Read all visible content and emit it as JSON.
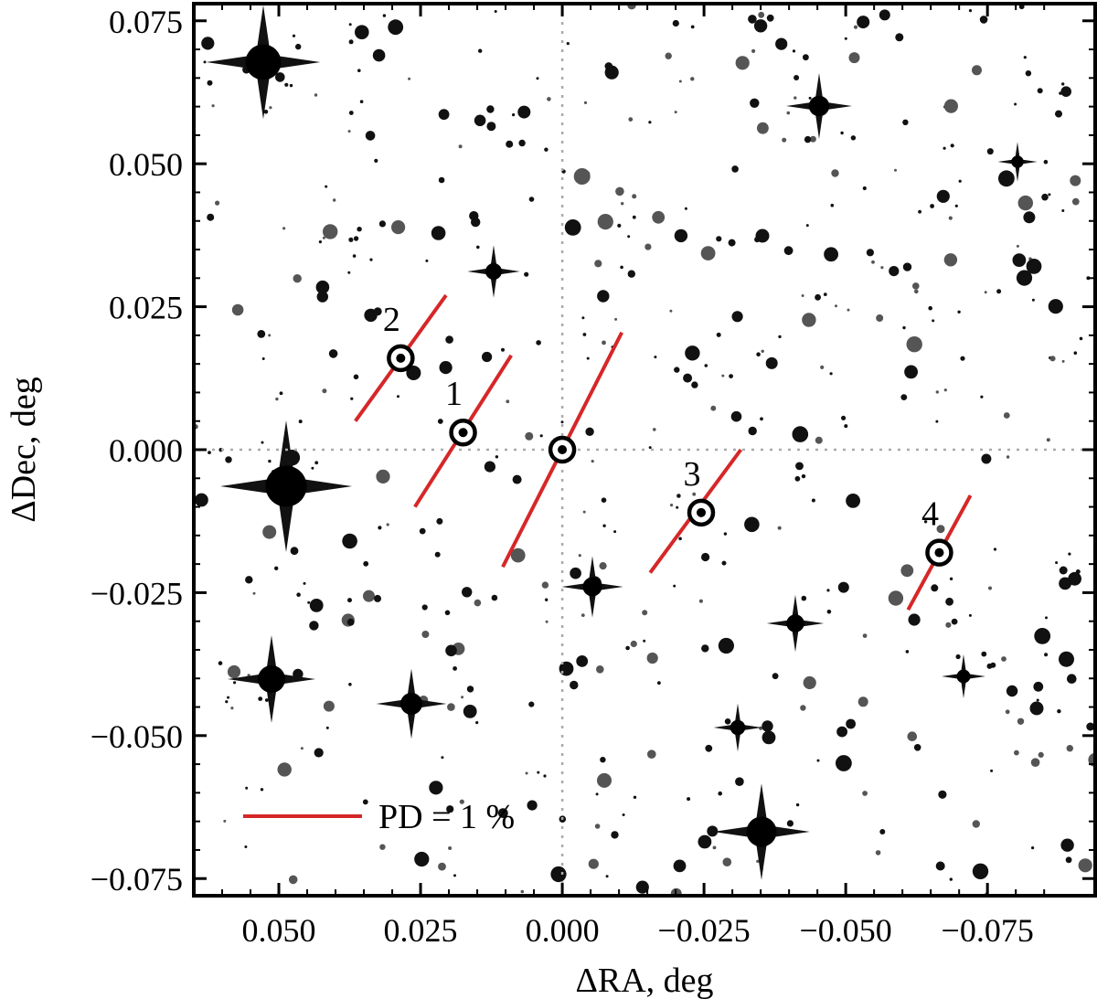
{
  "chart_data": {
    "type": "scatter",
    "xlabel": "ΔRA, deg",
    "ylabel": "ΔDec, deg",
    "xlim": [
      0.065,
      -0.094
    ],
    "ylim": [
      -0.078,
      0.078
    ],
    "x_inverted": true,
    "xticks": [
      {
        "value": 0.05,
        "label": "0.050"
      },
      {
        "value": 0.025,
        "label": "0.025"
      },
      {
        "value": 0.0,
        "label": "0.000"
      },
      {
        "value": -0.025,
        "label": "−0.025"
      },
      {
        "value": -0.05,
        "label": "−0.050"
      },
      {
        "value": -0.075,
        "label": "−0.075"
      }
    ],
    "yticks": [
      {
        "value": 0.075,
        "label": "0.075"
      },
      {
        "value": 0.05,
        "label": "0.050"
      },
      {
        "value": 0.025,
        "label": "0.025"
      },
      {
        "value": 0.0,
        "label": "0.000"
      },
      {
        "value": -0.025,
        "label": "−0.025"
      },
      {
        "value": -0.05,
        "label": "−0.050"
      },
      {
        "value": -0.075,
        "label": "−0.075"
      }
    ],
    "reference_lines": [
      {
        "axis": "x",
        "value": 0.0,
        "style": "dotted"
      },
      {
        "axis": "y",
        "value": 0.0,
        "style": "dotted"
      }
    ],
    "polarization_color": "#d62728",
    "targets": [
      {
        "label": "",
        "x": 0.0,
        "y": 0.0,
        "seg": [
          [
            0.0105,
            -0.0205
          ],
          [
            -0.0105,
            0.0205
          ]
        ]
      },
      {
        "label": "1",
        "x": 0.0175,
        "y": 0.003,
        "seg": [
          [
            0.026,
            -0.01
          ],
          [
            0.009,
            0.0165
          ]
        ]
      },
      {
        "label": "2",
        "x": 0.0285,
        "y": 0.016,
        "seg": [
          [
            0.0365,
            0.005
          ],
          [
            0.0205,
            0.027
          ]
        ]
      },
      {
        "label": "3",
        "x": -0.0245,
        "y": -0.011,
        "seg": [
          [
            -0.0155,
            -0.0215
          ],
          [
            -0.0315,
            0.0
          ]
        ]
      },
      {
        "label": "4",
        "x": -0.0665,
        "y": -0.018,
        "seg": [
          [
            -0.061,
            -0.028
          ],
          [
            -0.072,
            -0.008
          ]
        ]
      }
    ],
    "legend": {
      "label": "PD = 1 %",
      "placement": "bottom-left"
    }
  }
}
